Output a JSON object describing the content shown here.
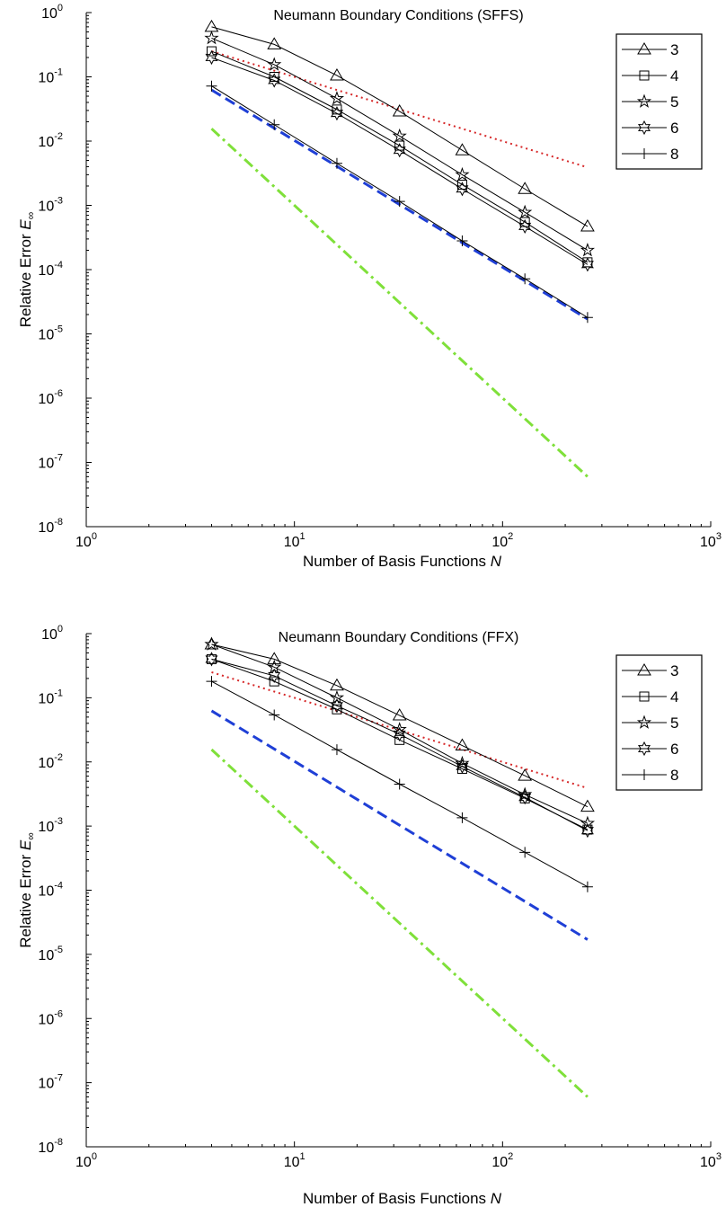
{
  "chart_data": [
    {
      "type": "line",
      "title": "Neumann Boundary Conditions (SFFS)",
      "xlabel": "Number of Basis Functions",
      "xlabel_var": "N",
      "ylabel": "Relative Error",
      "ylabel_var": "E",
      "ylabel_sub": "∞",
      "xscale": "log",
      "yscale": "log",
      "xlim": [
        1,
        1000
      ],
      "ylim": [
        1e-08,
        1
      ],
      "xticks": [
        {
          "base": "10",
          "exp": "0",
          "value": 1
        },
        {
          "base": "10",
          "exp": "1",
          "value": 10
        },
        {
          "base": "10",
          "exp": "2",
          "value": 100
        },
        {
          "base": "10",
          "exp": "3",
          "value": 1000
        }
      ],
      "yticks": [
        {
          "base": "10",
          "exp": "0",
          "value": 1
        },
        {
          "base": "10",
          "exp": "-1",
          "value": 0.1
        },
        {
          "base": "10",
          "exp": "-2",
          "value": 0.01
        },
        {
          "base": "10",
          "exp": "-3",
          "value": 0.001
        },
        {
          "base": "10",
          "exp": "-4",
          "value": 0.0001
        },
        {
          "base": "10",
          "exp": "-5",
          "value": 1e-05
        },
        {
          "base": "10",
          "exp": "-6",
          "value": 1e-06
        },
        {
          "base": "10",
          "exp": "-7",
          "value": 1e-07
        },
        {
          "base": "10",
          "exp": "-8",
          "value": 1e-08
        }
      ],
      "grid": false,
      "legend_position": "top-right",
      "x": [
        4,
        8,
        16,
        32,
        64,
        128,
        256
      ],
      "series": [
        {
          "name": "3",
          "marker": "triangle",
          "values": [
            0.6,
            0.32,
            0.105,
            0.029,
            0.0072,
            0.0018,
            0.00047
          ]
        },
        {
          "name": "4",
          "marker": "square",
          "values": [
            0.25,
            0.1,
            0.031,
            0.0085,
            0.0021,
            0.00055,
            0.00013
          ]
        },
        {
          "name": "5",
          "marker": "star5",
          "values": [
            0.4,
            0.155,
            0.046,
            0.012,
            0.003,
            0.00078,
            0.0002
          ]
        },
        {
          "name": "6",
          "marker": "star6",
          "values": [
            0.2,
            0.088,
            0.027,
            0.0072,
            0.0018,
            0.00047,
            0.00012
          ]
        },
        {
          "name": "8",
          "marker": "plus",
          "values": [
            0.072,
            0.018,
            0.0045,
            0.00115,
            0.00028,
            7.2e-05,
            1.8e-05
          ]
        }
      ],
      "reference_lines": [
        {
          "style": "dotted",
          "color": "#d62728",
          "x": [
            4,
            256
          ],
          "values": [
            0.25,
            0.0039
          ]
        },
        {
          "style": "dashed",
          "color": "#1f3fd6",
          "x": [
            4,
            256
          ],
          "values": [
            0.0625,
            1.7e-05
          ]
        },
        {
          "style": "dashdot",
          "color": "#7fe03a",
          "x": [
            4,
            256
          ],
          "values": [
            0.0156,
            6e-08
          ]
        }
      ]
    },
    {
      "type": "line",
      "title": "Neumann Boundary Conditions (FFX)",
      "xlabel": "Number of Basis Functions",
      "xlabel_var": "N",
      "ylabel": "Relative Error",
      "ylabel_var": "E",
      "ylabel_sub": "∞",
      "xscale": "log",
      "yscale": "log",
      "xlim": [
        1,
        1000
      ],
      "ylim": [
        1e-08,
        1
      ],
      "xticks": [
        {
          "base": "10",
          "exp": "0",
          "value": 1
        },
        {
          "base": "10",
          "exp": "1",
          "value": 10
        },
        {
          "base": "10",
          "exp": "2",
          "value": 100
        },
        {
          "base": "10",
          "exp": "3",
          "value": 1000
        }
      ],
      "yticks": [
        {
          "base": "10",
          "exp": "0",
          "value": 1
        },
        {
          "base": "10",
          "exp": "-1",
          "value": 0.1
        },
        {
          "base": "10",
          "exp": "-2",
          "value": 0.01
        },
        {
          "base": "10",
          "exp": "-3",
          "value": 0.001
        },
        {
          "base": "10",
          "exp": "-4",
          "value": 0.0001
        },
        {
          "base": "10",
          "exp": "-5",
          "value": 1e-05
        },
        {
          "base": "10",
          "exp": "-6",
          "value": 1e-06
        },
        {
          "base": "10",
          "exp": "-7",
          "value": 1e-07
        },
        {
          "base": "10",
          "exp": "-8",
          "value": 1e-08
        }
      ],
      "grid": false,
      "legend_position": "top-right",
      "x": [
        4,
        8,
        16,
        32,
        64,
        128,
        256
      ],
      "series": [
        {
          "name": "3",
          "marker": "triangle",
          "values": [
            0.68,
            0.4,
            0.155,
            0.053,
            0.018,
            0.0061,
            0.002
          ]
        },
        {
          "name": "4",
          "marker": "square",
          "values": [
            0.4,
            0.18,
            0.066,
            0.022,
            0.0078,
            0.0027,
            0.00088
          ]
        },
        {
          "name": "5",
          "marker": "star5",
          "values": [
            0.68,
            0.3,
            0.1,
            0.032,
            0.0095,
            0.0031,
            0.0011
          ]
        },
        {
          "name": "6",
          "marker": "star6",
          "values": [
            0.4,
            0.22,
            0.075,
            0.027,
            0.0085,
            0.0028,
            0.00085
          ]
        },
        {
          "name": "8",
          "marker": "plus",
          "values": [
            0.18,
            0.054,
            0.0155,
            0.0045,
            0.00135,
            0.00039,
            0.000113
          ]
        }
      ],
      "reference_lines": [
        {
          "style": "dotted",
          "color": "#d62728",
          "x": [
            4,
            256
          ],
          "values": [
            0.25,
            0.0039
          ]
        },
        {
          "style": "dashed",
          "color": "#1f3fd6",
          "x": [
            4,
            256
          ],
          "values": [
            0.0625,
            1.7e-05
          ]
        },
        {
          "style": "dashdot",
          "color": "#7fe03a",
          "x": [
            4,
            256
          ],
          "values": [
            0.0156,
            6e-08
          ]
        }
      ]
    }
  ]
}
